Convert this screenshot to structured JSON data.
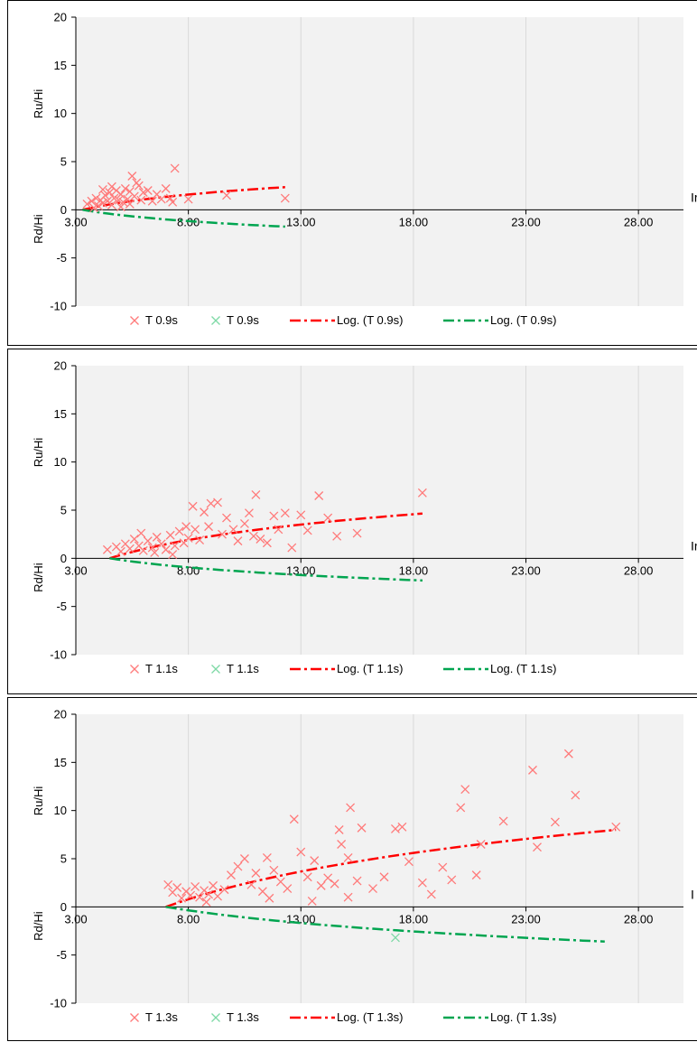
{
  "colors": {
    "red": "#ff0000",
    "redLight": "#ff7a7a",
    "green": "#00a550",
    "greenLight": "#7ed9a6",
    "plotBg": "#f2f2f2",
    "grid": "#d9d9d9"
  },
  "chart_data": [
    {
      "type": "scatter",
      "ylabel_top": "Ru/Hi",
      "ylabel_bottom": "Rd/Hi",
      "xlim": [
        3,
        30
      ],
      "ylim": [
        -10,
        20
      ],
      "xticks": [
        "3.00",
        "8.00",
        "13.00",
        "18.00",
        "23.00",
        "28.00"
      ],
      "yticks": [
        "20",
        "15",
        "10",
        "5",
        "0",
        "-5",
        "-10"
      ],
      "right_label": "Ir",
      "grid": true,
      "legend_position": "bottom",
      "series": [
        {
          "name": "T 0.9s",
          "kind": "scatter",
          "color": "red",
          "points": [
            [
              3.5,
              0.6
            ],
            [
              3.7,
              0.9
            ],
            [
              3.9,
              1.2
            ],
            [
              4.0,
              0.4
            ],
            [
              4.1,
              1.0
            ],
            [
              4.2,
              0.7
            ],
            [
              4.3,
              1.5
            ],
            [
              4.4,
              0.9
            ],
            [
              4.5,
              1.8
            ],
            [
              4.6,
              0.5
            ],
            [
              4.7,
              1.2
            ],
            [
              4.8,
              2.0
            ],
            [
              4.9,
              1.0
            ],
            [
              5.0,
              1.6
            ],
            [
              5.1,
              0.8
            ],
            [
              5.2,
              2.2
            ],
            [
              5.3,
              1.1
            ],
            [
              5.4,
              1.9
            ],
            [
              5.5,
              3.5
            ],
            [
              5.6,
              1.4
            ],
            [
              5.8,
              2.5
            ],
            [
              5.9,
              1.0
            ],
            [
              6.0,
              1.8
            ],
            [
              6.2,
              2.0
            ],
            [
              6.4,
              0.9
            ],
            [
              6.6,
              1.6
            ],
            [
              7.0,
              2.2
            ],
            [
              7.2,
              1.2
            ],
            [
              7.4,
              4.3
            ],
            [
              7.3,
              0.8
            ],
            [
              8.0,
              1.1
            ],
            [
              9.7,
              1.5
            ],
            [
              12.3,
              1.2
            ],
            [
              4.2,
              2.1
            ],
            [
              4.6,
              2.4
            ],
            [
              5.0,
              0.3
            ],
            [
              5.4,
              0.6
            ],
            [
              3.8,
              0.2
            ],
            [
              6.8,
              1.1
            ],
            [
              5.7,
              2.8
            ]
          ]
        },
        {
          "name": "T 0.9s",
          "kind": "scatter",
          "color": "green",
          "points": []
        },
        {
          "name": "Log. (T 0.9s)",
          "kind": "trend",
          "color": "red",
          "x": [
            3.3,
            12.3
          ],
          "y": [
            0.0,
            2.35
          ]
        },
        {
          "name": "Log. (T 0.9s)",
          "kind": "trend",
          "color": "green",
          "x": [
            3.3,
            12.3
          ],
          "y": [
            0.0,
            -1.75
          ]
        }
      ]
    },
    {
      "type": "scatter",
      "ylabel_top": "Ru/Hi",
      "ylabel_bottom": "Rd/Hi",
      "xlim": [
        3,
        30
      ],
      "ylim": [
        -10,
        20
      ],
      "xticks": [
        "3.00",
        "8.00",
        "13.00",
        "18.00",
        "23.00",
        "28.00"
      ],
      "yticks": [
        "20",
        "15",
        "10",
        "5",
        "0",
        "-5",
        "-10"
      ],
      "right_label": "Ir",
      "grid": true,
      "legend_position": "bottom",
      "series": [
        {
          "name": "T 1.1s",
          "kind": "scatter",
          "color": "red",
          "points": [
            [
              4.4,
              0.9
            ],
            [
              4.8,
              1.2
            ],
            [
              5.0,
              0.7
            ],
            [
              5.2,
              1.5
            ],
            [
              5.4,
              1.0
            ],
            [
              5.6,
              2.0
            ],
            [
              5.8,
              1.3
            ],
            [
              6.0,
              0.8
            ],
            [
              6.2,
              1.8
            ],
            [
              6.4,
              1.1
            ],
            [
              6.6,
              2.2
            ],
            [
              6.8,
              1.5
            ],
            [
              7.0,
              0.9
            ],
            [
              7.2,
              2.4
            ],
            [
              7.4,
              1.3
            ],
            [
              7.6,
              2.8
            ],
            [
              7.8,
              1.6
            ],
            [
              8.0,
              2.1
            ],
            [
              8.2,
              5.4
            ],
            [
              8.3,
              3.0
            ],
            [
              8.5,
              1.9
            ],
            [
              8.7,
              4.8
            ],
            [
              8.9,
              3.3
            ],
            [
              9.0,
              5.7
            ],
            [
              9.3,
              5.8
            ],
            [
              9.5,
              2.5
            ],
            [
              9.7,
              4.2
            ],
            [
              10.0,
              3.0
            ],
            [
              10.2,
              1.8
            ],
            [
              10.5,
              3.6
            ],
            [
              10.7,
              4.7
            ],
            [
              10.9,
              2.3
            ],
            [
              11.0,
              6.6
            ],
            [
              11.2,
              2.0
            ],
            [
              11.5,
              1.6
            ],
            [
              11.8,
              4.4
            ],
            [
              12.0,
              3.0
            ],
            [
              12.3,
              4.7
            ],
            [
              12.6,
              1.1
            ],
            [
              13.0,
              4.5
            ],
            [
              13.3,
              2.9
            ],
            [
              13.8,
              6.5
            ],
            [
              14.2,
              4.2
            ],
            [
              14.6,
              2.3
            ],
            [
              15.5,
              2.6
            ],
            [
              18.4,
              6.8
            ],
            [
              6.5,
              0.6
            ],
            [
              7.3,
              0.4
            ],
            [
              5.9,
              2.6
            ],
            [
              7.9,
              3.3
            ]
          ]
        },
        {
          "name": "T 1.1s",
          "kind": "scatter",
          "color": "green",
          "points": []
        },
        {
          "name": "Log. (T 1.1s)",
          "kind": "trend",
          "color": "red",
          "x": [
            4.5,
            18.4
          ],
          "y": [
            0.0,
            4.65
          ]
        },
        {
          "name": "Log. (T 1.1s)",
          "kind": "trend",
          "color": "green",
          "x": [
            4.5,
            18.4
          ],
          "y": [
            0.0,
            -2.3
          ]
        }
      ]
    },
    {
      "type": "scatter",
      "ylabel_top": "Ru/Hi",
      "ylabel_bottom": "Rd/Hi",
      "xlim": [
        3,
        30
      ],
      "ylim": [
        -10,
        20
      ],
      "xticks": [
        "3.00",
        "8.00",
        "13.00",
        "18.00",
        "23.00",
        "28.00"
      ],
      "yticks": [
        "20",
        "15",
        "10",
        "5",
        "0",
        "-5",
        "-10"
      ],
      "right_label": "I",
      "grid": true,
      "legend_position": "bottom",
      "series": [
        {
          "name": "T 1.3s",
          "kind": "scatter",
          "color": "red",
          "points": [
            [
              7.1,
              2.3
            ],
            [
              7.3,
              1.5
            ],
            [
              7.5,
              2.0
            ],
            [
              7.7,
              0.9
            ],
            [
              7.9,
              1.6
            ],
            [
              8.1,
              1.2
            ],
            [
              8.3,
              2.1
            ],
            [
              8.5,
              1.0
            ],
            [
              8.7,
              1.7
            ],
            [
              8.9,
              1.3
            ],
            [
              9.1,
              2.2
            ],
            [
              9.3,
              1.1
            ],
            [
              9.6,
              1.8
            ],
            [
              9.9,
              3.3
            ],
            [
              10.2,
              4.2
            ],
            [
              10.5,
              5.0
            ],
            [
              10.8,
              2.3
            ],
            [
              11.0,
              3.5
            ],
            [
              11.3,
              1.6
            ],
            [
              11.5,
              5.1
            ],
            [
              11.8,
              3.8
            ],
            [
              12.1,
              2.6
            ],
            [
              12.4,
              1.9
            ],
            [
              12.7,
              9.1
            ],
            [
              13.0,
              5.7
            ],
            [
              13.3,
              3.1
            ],
            [
              13.6,
              4.8
            ],
            [
              13.9,
              2.2
            ],
            [
              14.2,
              3.0
            ],
            [
              14.5,
              2.4
            ],
            [
              14.7,
              8.0
            ],
            [
              14.8,
              6.5
            ],
            [
              15.1,
              5.1
            ],
            [
              15.2,
              10.3
            ],
            [
              15.5,
              2.7
            ],
            [
              15.7,
              8.2
            ],
            [
              16.2,
              1.9
            ],
            [
              16.7,
              3.1
            ],
            [
              17.2,
              8.1
            ],
            [
              17.5,
              8.3
            ],
            [
              17.8,
              4.7
            ],
            [
              18.4,
              2.5
            ],
            [
              18.8,
              1.3
            ],
            [
              19.3,
              4.1
            ],
            [
              19.7,
              2.8
            ],
            [
              20.1,
              10.3
            ],
            [
              20.3,
              12.2
            ],
            [
              20.8,
              3.3
            ],
            [
              21.0,
              6.5
            ],
            [
              22.0,
              8.9
            ],
            [
              23.3,
              14.2
            ],
            [
              23.5,
              6.2
            ],
            [
              24.3,
              8.8
            ],
            [
              24.9,
              15.9
            ],
            [
              25.2,
              11.6
            ],
            [
              27.0,
              8.3
            ],
            [
              8.8,
              0.5
            ],
            [
              11.6,
              0.9
            ],
            [
              13.5,
              0.6
            ],
            [
              15.1,
              1.0
            ]
          ]
        },
        {
          "name": "T 1.3s",
          "kind": "scatter",
          "color": "green",
          "points": [
            [
              17.2,
              -3.2
            ]
          ]
        },
        {
          "name": "Log. (T 1.3s)",
          "kind": "trend",
          "color": "red",
          "x": [
            7.0,
            27.0
          ],
          "y": [
            0.0,
            8.0
          ]
        },
        {
          "name": "Log. (T 1.3s)",
          "kind": "trend",
          "color": "green",
          "x": [
            7.0,
            26.5
          ],
          "y": [
            0.0,
            -3.6
          ]
        }
      ]
    }
  ]
}
